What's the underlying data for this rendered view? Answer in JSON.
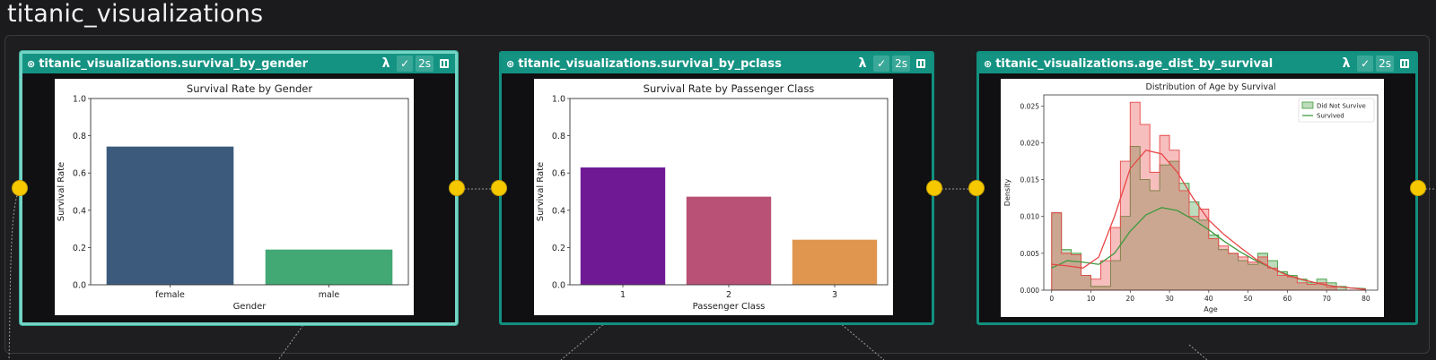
{
  "page": {
    "title": "titanic_visualizations"
  },
  "colors": {
    "node_border": "#12907f",
    "node_header": "#149383",
    "port": "#f5c800"
  },
  "nodes": [
    {
      "name": "titanic_visualizations.survival_by_gender",
      "icon": "asset-icon",
      "lambda": "λ",
      "check": "✓",
      "duration": "2s",
      "selected": true
    },
    {
      "name": "titanic_visualizations.survival_by_pclass",
      "icon": "asset-icon",
      "lambda": "λ",
      "check": "✓",
      "duration": "2s",
      "selected": false
    },
    {
      "name": "titanic_visualizations.age_dist_by_survival",
      "icon": "asset-icon",
      "lambda": "λ",
      "check": "✓",
      "duration": "2s",
      "selected": false
    }
  ],
  "chart_data": [
    {
      "type": "bar",
      "title": "Survival Rate by Gender",
      "xlabel": "Gender",
      "ylabel": "Survival Rate",
      "categories": [
        "female",
        "male"
      ],
      "values": [
        0.742,
        0.189
      ],
      "colors": [
        "#3c5b7c",
        "#42a874"
      ],
      "ylim": [
        0,
        1.0
      ],
      "yticks": [
        "0.0",
        "0.2",
        "0.4",
        "0.6",
        "0.8",
        "1.0"
      ],
      "grid": false
    },
    {
      "type": "bar",
      "title": "Survival Rate by Passenger Class",
      "xlabel": "Passenger Class",
      "ylabel": "Survival Rate",
      "categories": [
        "1",
        "2",
        "3"
      ],
      "values": [
        0.63,
        0.473,
        0.242
      ],
      "colors": [
        "#6f1a94",
        "#b95076",
        "#e0964f"
      ],
      "ylim": [
        0,
        1.0
      ],
      "yticks": [
        "0.0",
        "0.2",
        "0.4",
        "0.6",
        "0.8",
        "1.0"
      ],
      "grid": false
    },
    {
      "type": "area",
      "title": "Distribution of Age by Survival",
      "xlabel": "Age",
      "ylabel": "Density",
      "xlim": [
        -2,
        83
      ],
      "ylim": [
        0,
        0.0265
      ],
      "xticks": [
        "0",
        "10",
        "20",
        "30",
        "40",
        "50",
        "60",
        "70",
        "80"
      ],
      "yticks": [
        "0.000",
        "0.005",
        "0.010",
        "0.015",
        "0.020",
        "0.025"
      ],
      "legend": {
        "placement": "top-right",
        "entries": [
          "Did Not Survive",
          "Survived"
        ]
      },
      "bin_edges": [
        0,
        2.5,
        5,
        7.5,
        10,
        12.5,
        15,
        17.5,
        20,
        22.5,
        25,
        27.5,
        30,
        32.5,
        35,
        37.5,
        40,
        42.5,
        45,
        47.5,
        50,
        52.5,
        55,
        57.5,
        60,
        62.5,
        65,
        67.5,
        70,
        72.5,
        75,
        77.5,
        80
      ],
      "series": [
        {
          "name": "Did Not Survive",
          "color": "#3e9a3e",
          "hist": [
            0.0105,
            0.0055,
            0.005,
            0.002,
            0.0005,
            0.0005,
            0.004,
            0.01,
            0.0195,
            0.015,
            0.0135,
            0.017,
            0.0175,
            0.0145,
            0.012,
            0.0095,
            0.0075,
            0.0055,
            0.005,
            0.004,
            0.0035,
            0.005,
            0.004,
            0.0025,
            0.002,
            0.0015,
            0.001,
            0.0015,
            0.001,
            0.0005,
            0.0,
            0.0
          ],
          "kde_x": [
            0,
            4,
            8,
            12,
            16,
            20,
            24,
            28,
            32,
            36,
            40,
            44,
            48,
            52,
            56,
            60,
            64,
            68,
            72,
            76,
            80
          ],
          "kde_y": [
            0.003,
            0.004,
            0.0038,
            0.0035,
            0.005,
            0.008,
            0.0102,
            0.0112,
            0.0108,
            0.0096,
            0.0082,
            0.0066,
            0.0052,
            0.004,
            0.003,
            0.0021,
            0.0014,
            0.0009,
            0.0005,
            0.0003,
            0.0002
          ]
        },
        {
          "name": "Survived",
          "color": "#e84646",
          "hist": [
            0.0105,
            0.005,
            0.0048,
            0.002,
            0.0015,
            0.004,
            0.0085,
            0.0175,
            0.0255,
            0.0225,
            0.016,
            0.021,
            0.019,
            0.0135,
            0.01,
            0.011,
            0.007,
            0.006,
            0.005,
            0.0045,
            0.0038,
            0.0045,
            0.003,
            0.002,
            0.0018,
            0.001,
            0.0008,
            0.001,
            0.0004,
            0.0,
            0.0,
            0.0
          ],
          "kde_x": [
            0,
            4,
            8,
            12,
            16,
            20,
            24,
            28,
            32,
            36,
            40,
            44,
            48,
            52,
            56,
            60,
            64,
            68,
            72,
            76,
            80
          ],
          "kde_y": [
            0.0035,
            0.0033,
            0.003,
            0.0045,
            0.01,
            0.0165,
            0.019,
            0.0185,
            0.016,
            0.0125,
            0.0095,
            0.0075,
            0.0058,
            0.0042,
            0.003,
            0.002,
            0.0014,
            0.0009,
            0.0005,
            0.0003,
            0.0001
          ]
        }
      ]
    }
  ]
}
